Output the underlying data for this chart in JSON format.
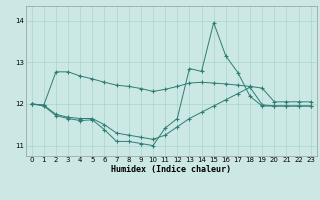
{
  "xlabel": "Humidex (Indice chaleur)",
  "xlim": [
    -0.5,
    23.5
  ],
  "ylim": [
    10.75,
    14.35
  ],
  "yticks": [
    11,
    12,
    13,
    14
  ],
  "xticks": [
    0,
    1,
    2,
    3,
    4,
    5,
    6,
    7,
    8,
    9,
    10,
    11,
    12,
    13,
    14,
    15,
    16,
    17,
    18,
    19,
    20,
    21,
    22,
    23
  ],
  "bg_color": "#cce8e5",
  "line_color": "#2d7d74",
  "grid_color": "#a8d4d0",
  "s1": [
    12.0,
    11.97,
    12.77,
    12.77,
    12.67,
    12.6,
    12.52,
    12.45,
    12.42,
    12.37,
    12.3,
    12.35,
    12.42,
    12.5,
    12.52,
    12.5,
    12.48,
    12.45,
    12.42,
    12.38,
    12.05,
    12.05,
    12.05,
    12.05
  ],
  "s2": [
    12.0,
    11.95,
    11.72,
    11.65,
    11.6,
    11.62,
    11.38,
    11.1,
    11.1,
    11.05,
    11.0,
    11.42,
    11.65,
    12.85,
    12.78,
    13.95,
    13.15,
    12.75,
    12.18,
    11.95,
    11.95,
    11.95,
    11.95,
    11.95
  ],
  "s3": [
    12.0,
    11.97,
    11.75,
    11.68,
    11.65,
    11.65,
    11.5,
    11.3,
    11.25,
    11.2,
    11.15,
    11.25,
    11.45,
    11.65,
    11.8,
    11.95,
    12.1,
    12.25,
    12.4,
    11.98,
    11.95,
    11.95,
    11.95,
    11.95
  ]
}
